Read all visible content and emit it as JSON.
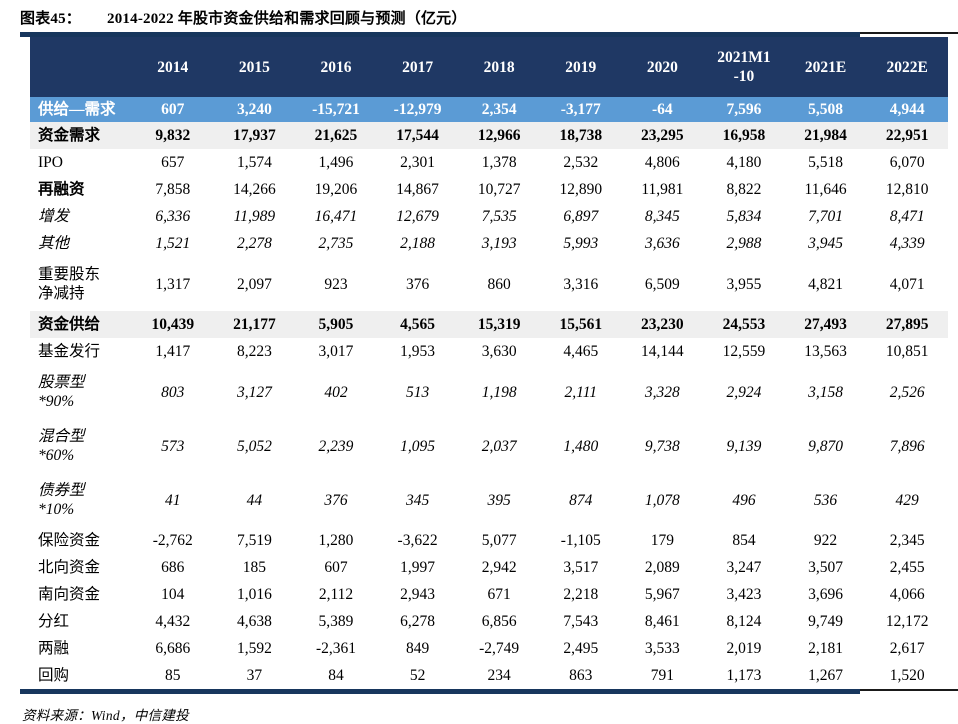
{
  "header": {
    "figure_label": "图表45：",
    "title": "2014-2022 年股市资金供给和需求回顾与预测（亿元）"
  },
  "colors": {
    "header_bg": "#1f3864",
    "highlight_bg": "#5b9bd5",
    "section_bg": "#efefef",
    "rule_color": "#17365d"
  },
  "table": {
    "columns": [
      {
        "lines": [
          "2014"
        ]
      },
      {
        "lines": [
          "2015"
        ]
      },
      {
        "lines": [
          "2016"
        ]
      },
      {
        "lines": [
          "2017"
        ]
      },
      {
        "lines": [
          "2018"
        ]
      },
      {
        "lines": [
          "2019"
        ]
      },
      {
        "lines": [
          "2020"
        ]
      },
      {
        "lines": [
          "2021M1",
          "-10"
        ]
      },
      {
        "lines": [
          "2021E"
        ]
      },
      {
        "lines": [
          "2022E"
        ]
      }
    ],
    "rows": [
      {
        "label": [
          "供给—需求"
        ],
        "style": "highlight",
        "values": [
          "607",
          "3,240",
          "-15,721",
          "-12,979",
          "2,354",
          "-3,177",
          "-64",
          "7,596",
          "5,508",
          "4,944"
        ]
      },
      {
        "label": [
          "资金需求"
        ],
        "style": "section",
        "values": [
          "9,832",
          "17,937",
          "21,625",
          "17,544",
          "12,966",
          "18,738",
          "23,295",
          "16,958",
          "21,984",
          "22,951"
        ]
      },
      {
        "label": [
          "IPO"
        ],
        "style": "normal",
        "values": [
          "657",
          "1,574",
          "1,496",
          "2,301",
          "1,378",
          "2,532",
          "4,806",
          "4,180",
          "5,518",
          "6,070"
        ]
      },
      {
        "label": [
          "再融资"
        ],
        "style": "bold-label",
        "values": [
          "7,858",
          "14,266",
          "19,206",
          "14,867",
          "10,727",
          "12,890",
          "11,981",
          "8,822",
          "11,646",
          "12,810"
        ]
      },
      {
        "label": [
          "增发"
        ],
        "style": "italic",
        "values": [
          "6,336",
          "11,989",
          "16,471",
          "12,679",
          "7,535",
          "6,897",
          "8,345",
          "5,834",
          "7,701",
          "8,471"
        ]
      },
      {
        "label": [
          "其他"
        ],
        "style": "italic",
        "values": [
          "1,521",
          "2,278",
          "2,735",
          "2,188",
          "3,193",
          "5,993",
          "3,636",
          "2,988",
          "3,945",
          "4,339"
        ]
      },
      {
        "label": [
          "重要股东",
          "净减持"
        ],
        "style": "normal",
        "values": [
          "1,317",
          "2,097",
          "923",
          "376",
          "860",
          "3,316",
          "6,509",
          "3,955",
          "4,821",
          "4,071"
        ]
      },
      {
        "label": [
          "资金供给"
        ],
        "style": "section",
        "values": [
          "10,439",
          "21,177",
          "5,905",
          "4,565",
          "15,319",
          "15,561",
          "23,230",
          "24,553",
          "27,493",
          "27,895"
        ]
      },
      {
        "label": [
          "基金发行"
        ],
        "style": "normal",
        "values": [
          "1,417",
          "8,223",
          "3,017",
          "1,953",
          "3,630",
          "4,465",
          "14,144",
          "12,559",
          "13,563",
          "10,851"
        ]
      },
      {
        "label": [
          "股票型",
          "*90%"
        ],
        "style": "italic",
        "values": [
          "803",
          "3,127",
          "402",
          "513",
          "1,198",
          "2,111",
          "3,328",
          "2,924",
          "3,158",
          "2,526"
        ]
      },
      {
        "label": [
          "混合型",
          "*60%"
        ],
        "style": "italic",
        "values": [
          "573",
          "5,052",
          "2,239",
          "1,095",
          "2,037",
          "1,480",
          "9,738",
          "9,139",
          "9,870",
          "7,896"
        ]
      },
      {
        "label": [
          "债券型",
          "*10%"
        ],
        "style": "italic",
        "values": [
          "41",
          "44",
          "376",
          "345",
          "395",
          "874",
          "1,078",
          "496",
          "536",
          "429"
        ]
      },
      {
        "label": [
          "保险资金"
        ],
        "style": "normal",
        "values": [
          "-2,762",
          "7,519",
          "1,280",
          "-3,622",
          "5,077",
          "-1,105",
          "179",
          "854",
          "922",
          "2,345"
        ]
      },
      {
        "label": [
          "北向资金"
        ],
        "style": "normal",
        "values": [
          "686",
          "185",
          "607",
          "1,997",
          "2,942",
          "3,517",
          "2,089",
          "3,247",
          "3,507",
          "2,455"
        ]
      },
      {
        "label": [
          "南向资金"
        ],
        "style": "normal",
        "values": [
          "104",
          "1,016",
          "2,112",
          "2,943",
          "671",
          "2,218",
          "5,967",
          "3,423",
          "3,696",
          "4,066"
        ]
      },
      {
        "label": [
          "分红"
        ],
        "style": "normal",
        "values": [
          "4,432",
          "4,638",
          "5,389",
          "6,278",
          "6,856",
          "7,543",
          "8,461",
          "8,124",
          "9,749",
          "12,172"
        ]
      },
      {
        "label": [
          "两融"
        ],
        "style": "normal",
        "values": [
          "6,686",
          "1,592",
          "-2,361",
          "849",
          "-2,749",
          "2,495",
          "3,533",
          "2,019",
          "2,181",
          "2,617"
        ]
      },
      {
        "label": [
          "回购"
        ],
        "style": "normal",
        "values": [
          "85",
          "37",
          "84",
          "52",
          "234",
          "863",
          "791",
          "1,173",
          "1,267",
          "1,520"
        ]
      }
    ]
  },
  "footer": {
    "source": "资料来源：Wind，中信建投"
  }
}
